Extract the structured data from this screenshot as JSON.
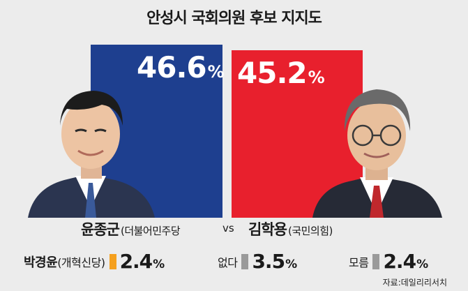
{
  "chart_data": {
    "type": "bar",
    "title": "안성시 국회의원 후보 지지도",
    "categories": [
      "윤종군",
      "김학용"
    ],
    "series": [
      {
        "name": "지지도",
        "values": [
          46.6,
          45.2
        ]
      }
    ],
    "value_labels": [
      "46.6",
      "45.2"
    ],
    "unit": "%",
    "parties": [
      "(더불어민주당",
      "(국민의힘)"
    ],
    "colors": [
      "#1e3f8f",
      "#e8202d"
    ],
    "ylim": [
      0,
      50
    ],
    "vs_label": "vs",
    "others": [
      {
        "name": "박경윤",
        "party": "(개혁신당)",
        "value": "2.4",
        "color": "#f5a01e"
      },
      {
        "name": "없다",
        "party": "",
        "value": "3.5",
        "color": "#9a9a9a"
      },
      {
        "name": "모름",
        "party": "",
        "value": "2.4",
        "color": "#9a9a9a"
      }
    ],
    "source": "자료:데일리리서치",
    "grid": false
  }
}
